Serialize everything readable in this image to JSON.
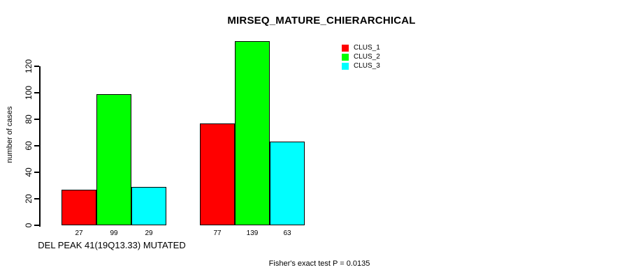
{
  "chart_data": {
    "type": "bar",
    "title": "MIRSEQ_MATURE_CHIERARCHICAL",
    "xlabel": "DEL PEAK 41(19Q13.33) MUTATED",
    "ylabel": "number of cases",
    "footer": "Fisher's exact test P = 0.0135",
    "categories": [
      "",
      ""
    ],
    "series": [
      {
        "name": "CLUS_1",
        "color": "#ff0000",
        "values": [
          27,
          77
        ]
      },
      {
        "name": "CLUS_2",
        "color": "#00ff00",
        "values": [
          99,
          139
        ]
      },
      {
        "name": "CLUS_3",
        "color": "#00ffff",
        "values": [
          29,
          63
        ]
      }
    ],
    "bar_value_labels_shown": true,
    "y_ticks": [
      0,
      20,
      40,
      60,
      80,
      100,
      120
    ],
    "ylim": [
      0,
      140
    ],
    "grid": false,
    "legend_position": "top-right",
    "background_color": "#ffffff",
    "text_color": "#000000"
  }
}
